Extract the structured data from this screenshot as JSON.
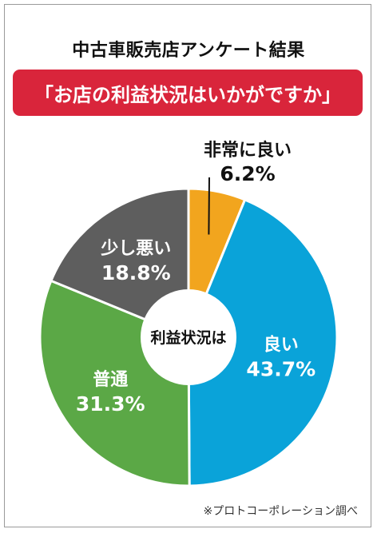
{
  "page": {
    "title": "中古車販売店アンケート結果",
    "question": "「お店の利益状況はいかがですか」",
    "footnote": "※プロトコーポレーション調べ"
  },
  "colors": {
    "banner": "#d9253b",
    "text_dark": "#111111",
    "text_light": "#ffffff"
  },
  "chart_data": {
    "type": "pie",
    "donut": true,
    "center_label": "利益状況は",
    "title": "中古車販売店アンケート結果",
    "subtitle": "「お店の利益状況はいかがですか」",
    "unit": "%",
    "slices": [
      {
        "label": "非常に良い",
        "value": 6.2,
        "value_label": "6.2%",
        "color": "#f2a51e",
        "label_outside": true
      },
      {
        "label": "良い",
        "value": 43.7,
        "value_label": "43.7%",
        "color": "#0aa3d9",
        "label_outside": false
      },
      {
        "label": "普通",
        "value": 31.3,
        "value_label": "31.3%",
        "color": "#5ba846",
        "label_outside": false
      },
      {
        "label": "少し悪い",
        "value": 18.8,
        "value_label": "18.8%",
        "color": "#5e5e5e",
        "label_outside": false
      }
    ]
  }
}
